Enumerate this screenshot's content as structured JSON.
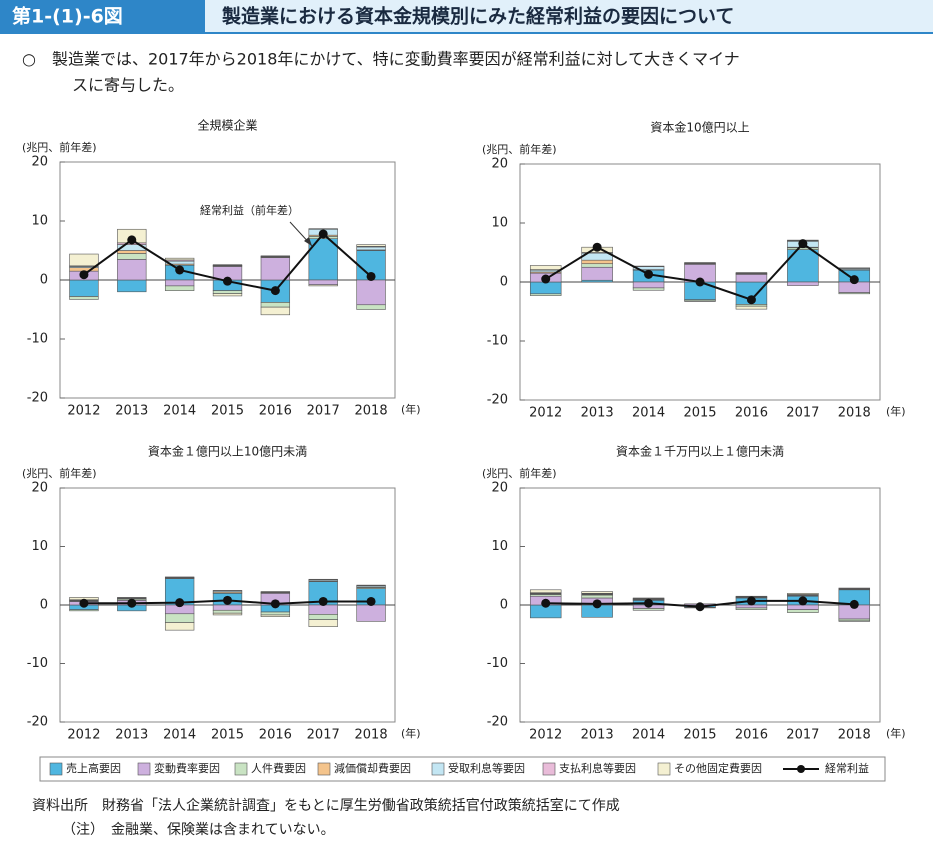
{
  "header": {
    "figure_no": "第1-(1)-6図",
    "title": "製造業における資本金規模別にみた経常利益の要因について"
  },
  "lead": [
    "○　製造業では、2017年から2018年にかけて、特に変動費率要因が経常利益に対して大きくマイナ",
    "スに寄与した。"
  ],
  "notes": [
    "資料出所　財務省「法人企業統計調査」をもとに厚生労働省政策統括官付政策統括室にて作成",
    "（注）　金融業、保険業は含まれていない。"
  ],
  "chart_data": [
    {
      "type": "bar",
      "title": "全規模企業",
      "y_label": "(兆円、前年差)",
      "x_label": "(年)",
      "annotation": "経常利益（前年差）",
      "categories": [
        "2012",
        "2013",
        "2014",
        "2015",
        "2016",
        "2017",
        "2018"
      ],
      "ylim": [
        -20,
        20
      ],
      "yticks": [
        -20,
        -10,
        0,
        10,
        20
      ],
      "series": [
        {
          "name": "売上高要因",
          "color": "#4fb6e0",
          "values": [
            -2.8,
            -2.0,
            2.5,
            -1.8,
            -3.8,
            7.0,
            5.0
          ]
        },
        {
          "name": "変動費率要因",
          "color": "#cdb0de",
          "values": [
            1.5,
            3.5,
            -1.0,
            2.3,
            3.8,
            -0.8,
            -4.2
          ]
        },
        {
          "name": "人件費要因",
          "color": "#c9e3c3",
          "values": [
            -0.5,
            1.0,
            -0.8,
            -0.5,
            -0.8,
            0.4,
            -0.8
          ]
        },
        {
          "name": "減価償却費要因",
          "color": "#f4c48c",
          "values": [
            0.6,
            0.5,
            0.2,
            0.1,
            0.1,
            0.2,
            0.1
          ]
        },
        {
          "name": "受取利息等要因",
          "color": "#c3e6f3",
          "values": [
            0.2,
            1.0,
            0.5,
            0.1,
            0.1,
            1.0,
            0.5
          ]
        },
        {
          "name": "支払利息等要因",
          "color": "#e9bcd9",
          "values": [
            0.1,
            0.3,
            0.2,
            0.1,
            0.1,
            0.1,
            0.1
          ]
        },
        {
          "name": "その他固定費要因",
          "color": "#f4f0d2",
          "values": [
            2.0,
            2.3,
            0.3,
            -0.4,
            -1.3,
            -0.2,
            0.3
          ]
        },
        {
          "name": "経常利益",
          "type": "line",
          "color": "#111111",
          "values": [
            0.9,
            6.8,
            1.7,
            -0.2,
            -1.8,
            7.8,
            0.6
          ]
        }
      ]
    },
    {
      "type": "bar",
      "title": "資本金10億円以上",
      "y_label": "(兆円、前年差)",
      "x_label": "(年)",
      "categories": [
        "2012",
        "2013",
        "2014",
        "2015",
        "2016",
        "2017",
        "2018"
      ],
      "ylim": [
        -20,
        20
      ],
      "yticks": [
        -20,
        -10,
        0,
        10,
        20
      ],
      "series": [
        {
          "name": "売上高要因",
          "color": "#4fb6e0",
          "values": [
            -2.0,
            0.3,
            2.0,
            -3.0,
            -3.8,
            5.5,
            2.0
          ]
        },
        {
          "name": "変動費率要因",
          "color": "#cdb0de",
          "values": [
            1.5,
            2.2,
            -1.0,
            3.0,
            1.3,
            -0.6,
            -1.8
          ]
        },
        {
          "name": "人件費要因",
          "color": "#c9e3c3",
          "values": [
            -0.3,
            0.6,
            -0.4,
            -0.2,
            -0.3,
            0.3,
            -0.2
          ]
        },
        {
          "name": "減価償却費要因",
          "color": "#f4c48c",
          "values": [
            0.2,
            0.6,
            0.1,
            0.1,
            0.1,
            0.1,
            0.1
          ]
        },
        {
          "name": "受取利息等要因",
          "color": "#c3e6f3",
          "values": [
            0.3,
            1.2,
            0.5,
            0.1,
            0.1,
            1.0,
            0.2
          ]
        },
        {
          "name": "支払利息等要因",
          "color": "#e9bcd9",
          "values": [
            0.1,
            0.1,
            0.1,
            0.1,
            0.1,
            0.1,
            0.1
          ]
        },
        {
          "name": "その他固定費要因",
          "color": "#f4f0d2",
          "values": [
            0.7,
            0.9,
            0.0,
            -0.1,
            -0.5,
            0.1,
            0.0
          ]
        },
        {
          "name": "経常利益",
          "type": "line",
          "color": "#111111",
          "values": [
            0.5,
            5.9,
            1.3,
            0.0,
            -3.0,
            6.5,
            0.4
          ]
        }
      ]
    },
    {
      "type": "bar",
      "title": "資本金１億円以上10億円未満",
      "y_label": "(兆円、前年差)",
      "x_label": "(年)",
      "categories": [
        "2012",
        "2013",
        "2014",
        "2015",
        "2016",
        "2017",
        "2018"
      ],
      "ylim": [
        -20,
        20
      ],
      "yticks": [
        -20,
        -10,
        0,
        10,
        20
      ],
      "series": [
        {
          "name": "売上高要因",
          "color": "#4fb6e0",
          "values": [
            -0.8,
            -1.0,
            4.5,
            2.0,
            -1.2,
            4.0,
            2.8
          ]
        },
        {
          "name": "変動費率要因",
          "color": "#cdb0de",
          "values": [
            0.6,
            0.8,
            -1.5,
            -0.9,
            2.0,
            -1.6,
            -2.8
          ]
        },
        {
          "name": "人件費要因",
          "color": "#c9e3c3",
          "values": [
            -0.2,
            0.2,
            -1.5,
            -0.5,
            -0.5,
            -0.9,
            0.2
          ]
        },
        {
          "name": "減価償却費要因",
          "color": "#f4c48c",
          "values": [
            0.1,
            0.1,
            0.1,
            0.2,
            0.1,
            0.1,
            0.1
          ]
        },
        {
          "name": "受取利息等要因",
          "color": "#c3e6f3",
          "values": [
            0.1,
            0.1,
            0.1,
            0.2,
            0.1,
            0.2,
            0.2
          ]
        },
        {
          "name": "支払利息等要因",
          "color": "#e9bcd9",
          "values": [
            0.1,
            0.1,
            0.1,
            0.1,
            0.1,
            0.1,
            0.1
          ]
        },
        {
          "name": "その他固定費要因",
          "color": "#f4f0d2",
          "values": [
            0.4,
            0.0,
            -1.3,
            -0.3,
            -0.3,
            -1.2,
            0.0
          ]
        },
        {
          "name": "経常利益",
          "type": "line",
          "color": "#111111",
          "values": [
            0.3,
            0.3,
            0.4,
            0.8,
            0.2,
            0.6,
            0.6
          ]
        }
      ]
    },
    {
      "type": "bar",
      "title": "資本金１千万円以上１億円未満",
      "y_label": "(兆円、前年差)",
      "x_label": "(年)",
      "categories": [
        "2012",
        "2013",
        "2014",
        "2015",
        "2016",
        "2017",
        "2018"
      ],
      "ylim": [
        -20,
        20
      ],
      "yticks": [
        -20,
        -10,
        0,
        10,
        20
      ],
      "series": [
        {
          "name": "売上高要因",
          "color": "#4fb6e0",
          "values": [
            -2.2,
            -2.1,
            0.8,
            -0.4,
            1.2,
            1.5,
            2.6
          ]
        },
        {
          "name": "変動費率要因",
          "color": "#cdb0de",
          "values": [
            1.5,
            1.2,
            -0.6,
            0.2,
            -0.5,
            -0.8,
            -2.4
          ]
        },
        {
          "name": "人件費要因",
          "color": "#c9e3c3",
          "values": [
            0.3,
            0.5,
            -0.3,
            -0.1,
            -0.3,
            -0.5,
            -0.3
          ]
        },
        {
          "name": "減価償却費要因",
          "color": "#f4c48c",
          "values": [
            0.1,
            0.1,
            0.1,
            0.0,
            0.1,
            0.1,
            0.1
          ]
        },
        {
          "name": "受取利息等要因",
          "color": "#c3e6f3",
          "values": [
            0.1,
            0.1,
            0.1,
            0.0,
            0.1,
            0.1,
            0.1
          ]
        },
        {
          "name": "支払利息等要因",
          "color": "#e9bcd9",
          "values": [
            0.1,
            0.1,
            0.1,
            0.0,
            0.1,
            0.1,
            0.1
          ]
        },
        {
          "name": "その他固定費要因",
          "color": "#f4f0d2",
          "values": [
            0.5,
            0.3,
            0.1,
            0.0,
            0.0,
            0.2,
            -0.1
          ]
        },
        {
          "name": "経常利益",
          "type": "line",
          "color": "#111111",
          "values": [
            0.3,
            0.2,
            0.3,
            -0.3,
            0.7,
            0.7,
            0.1
          ]
        }
      ]
    }
  ]
}
